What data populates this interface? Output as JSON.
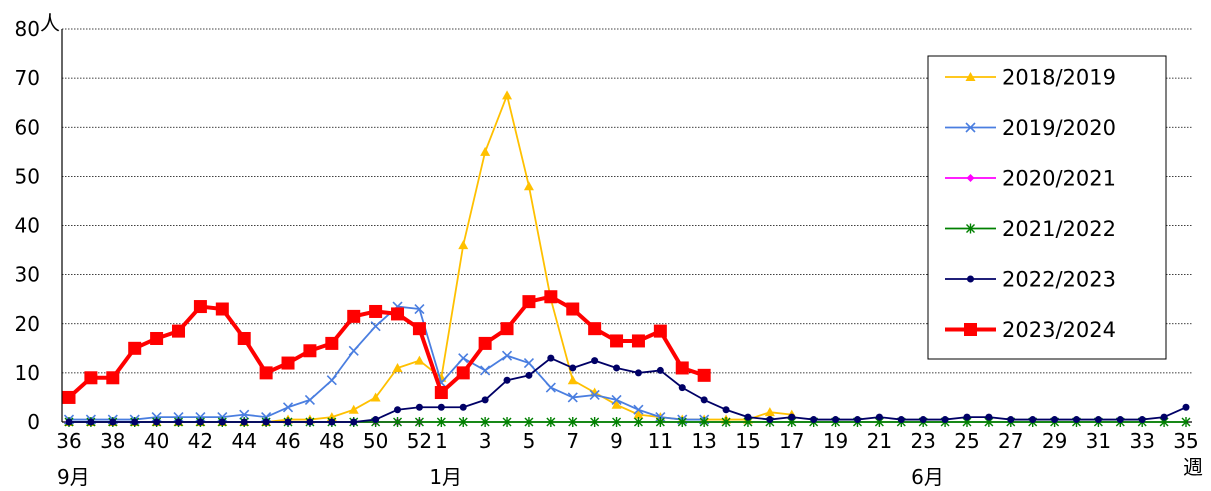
{
  "chart_data": {
    "type": "line",
    "y_unit": "人",
    "x_unit": "週",
    "ylim": [
      0,
      80
    ],
    "y_ticks": [
      0,
      10,
      20,
      30,
      40,
      50,
      60,
      70,
      80
    ],
    "grid": true,
    "legend_position": "top-right",
    "weeks": [
      36,
      37,
      38,
      39,
      40,
      41,
      42,
      43,
      44,
      45,
      46,
      47,
      48,
      49,
      50,
      51,
      52,
      1,
      2,
      3,
      4,
      5,
      6,
      7,
      8,
      9,
      10,
      11,
      12,
      13,
      14,
      15,
      16,
      17,
      18,
      19,
      20,
      21,
      22,
      23,
      24,
      25,
      26,
      27,
      28,
      29,
      30,
      31,
      32,
      33,
      34,
      35
    ],
    "x_tick_labels": [
      "36",
      "38",
      "40",
      "42",
      "44",
      "46",
      "48",
      "50",
      "52",
      "1",
      "3",
      "5",
      "7",
      "9",
      "11",
      "13",
      "15",
      "17",
      "19",
      "21",
      "23",
      "25",
      "27",
      "29",
      "31",
      "33",
      "35"
    ],
    "month_labels": [
      {
        "text": "9月",
        "week": "36"
      },
      {
        "text": "1月",
        "week": "1"
      },
      {
        "text": "6月",
        "week": "23"
      }
    ],
    "series": [
      {
        "name": "2018/2019",
        "color": "#FFC000",
        "marker": "triangle",
        "values": [
          0,
          0,
          0,
          0,
          0,
          0,
          0,
          0,
          0,
          0,
          0.5,
          0.5,
          1,
          2.5,
          5,
          11,
          12.5,
          9,
          36,
          55,
          66.5,
          48,
          25,
          8.5,
          6,
          3.5,
          1.5,
          1,
          0.5,
          0.5,
          0.5,
          0.5,
          2,
          1.5,
          null,
          null,
          null,
          null,
          null,
          null,
          null,
          null,
          null,
          null,
          null,
          null,
          null,
          null,
          null,
          null,
          null,
          null
        ]
      },
      {
        "name": "2019/2020",
        "color": "#4A7EE0",
        "marker": "x",
        "values": [
          0.5,
          0.5,
          0.5,
          0.5,
          1,
          1,
          1,
          1,
          1.5,
          1,
          3,
          4.5,
          8.5,
          14.5,
          19.5,
          23.5,
          23,
          8,
          13,
          10.5,
          13.5,
          12,
          7,
          5,
          5.5,
          4.5,
          2.5,
          1,
          0.5,
          0.5,
          null,
          null,
          null,
          null,
          null,
          null,
          null,
          null,
          null,
          null,
          null,
          null,
          null,
          null,
          null,
          null,
          null,
          null,
          null,
          null,
          null,
          null
        ]
      },
      {
        "name": "2020/2021",
        "color": "#FF00FF",
        "marker": "diamond",
        "values": [
          0,
          0,
          0,
          0,
          0,
          0,
          0,
          0,
          0,
          0,
          0,
          0,
          0,
          0,
          0,
          0,
          0,
          null,
          null,
          null,
          null,
          null,
          null,
          null,
          null,
          null,
          null,
          null,
          null,
          null,
          null,
          null,
          null,
          null,
          null,
          null,
          null,
          null,
          null,
          null,
          null,
          null,
          null,
          null,
          null,
          null,
          null,
          null,
          null,
          null,
          null,
          null
        ]
      },
      {
        "name": "2021/2022",
        "color": "#008000",
        "marker": "star",
        "values": [
          0,
          0,
          0,
          0,
          0,
          0,
          0,
          0,
          0,
          0,
          0,
          0,
          0,
          0,
          0,
          0,
          0,
          0,
          0,
          0,
          0,
          0,
          0,
          0,
          0,
          0,
          0,
          0,
          0,
          0,
          0,
          0,
          0,
          0,
          0,
          0,
          0,
          0,
          0,
          0,
          0,
          0,
          0,
          0,
          0,
          0,
          0,
          0,
          0,
          0,
          0,
          0
        ]
      },
      {
        "name": "2022/2023",
        "color": "#000066",
        "marker": "circle",
        "values": [
          0,
          0,
          0,
          0,
          0,
          0,
          0,
          0,
          0,
          0,
          0,
          0,
          0,
          0,
          0.5,
          2.5,
          3,
          3,
          3,
          4.5,
          8.5,
          9.5,
          13,
          11,
          12.5,
          11,
          10,
          10.5,
          7,
          4.5,
          2.5,
          1,
          0.5,
          1,
          0.5,
          0.5,
          0.5,
          1,
          0.5,
          0.5,
          0.5,
          1,
          1,
          0.5,
          0.5,
          0.5,
          0.5,
          0.5,
          0.5,
          0.5,
          1,
          3
        ]
      },
      {
        "name": "2023/2024",
        "color": "#FF0000",
        "marker": "square",
        "values": [
          5,
          9,
          9,
          15,
          17,
          18.5,
          23.5,
          23,
          17,
          10,
          12,
          14.5,
          16,
          21.5,
          22.5,
          22,
          19,
          6,
          10,
          16,
          19,
          24.5,
          25.5,
          23,
          19,
          16.5,
          16.5,
          18.5,
          11,
          9.5,
          null,
          null,
          null,
          null,
          null,
          null,
          null,
          null,
          null,
          null,
          null,
          null,
          null,
          null,
          null,
          null,
          null,
          null,
          null,
          null,
          null,
          null
        ]
      }
    ]
  }
}
